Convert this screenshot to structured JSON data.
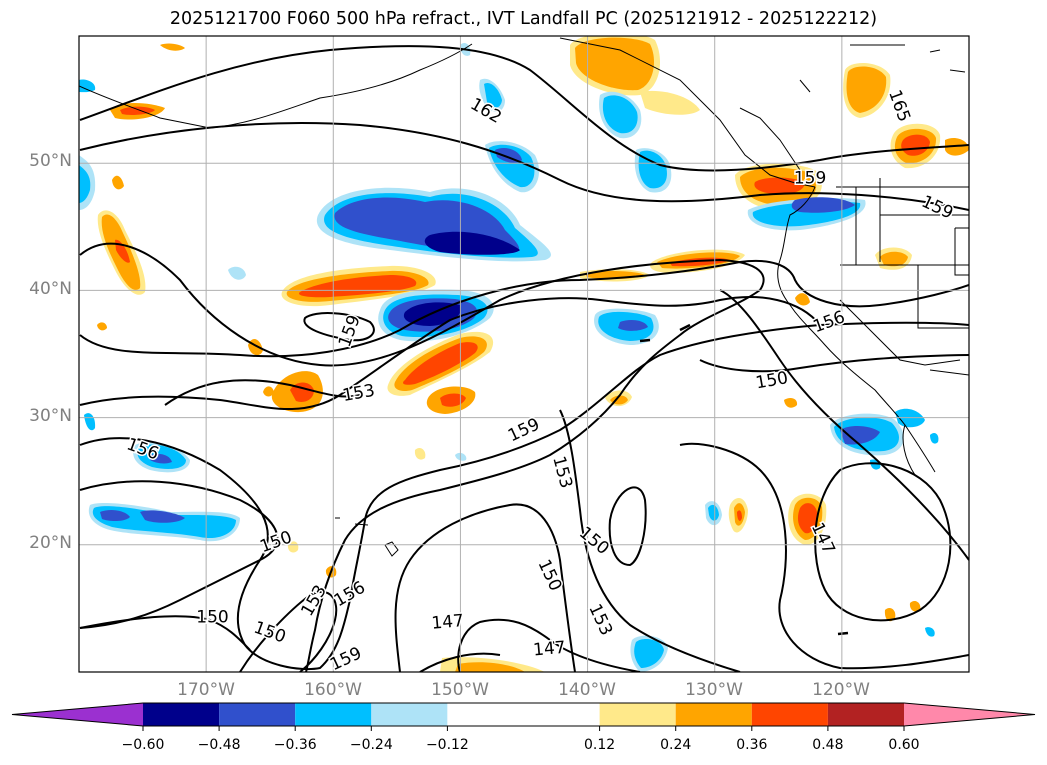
{
  "title": "2025121700 F060 500 hPa refract., IVT Landfall PC (2025121912 - 2025122212)",
  "map": {
    "lon_range": [
      -180,
      -110
    ],
    "lat_range": [
      10,
      60
    ],
    "grid_lons": [
      -170,
      -160,
      -150,
      -140,
      -130,
      -120
    ],
    "grid_lats": [
      20,
      30,
      40,
      50
    ],
    "lat_labels": [
      "20°N",
      "30°N",
      "40°N",
      "50°N"
    ],
    "lon_labels": [
      "170°W",
      "160°W",
      "150°W",
      "140°W",
      "130°W",
      "120°W"
    ],
    "contour_labels": [
      {
        "text": "162",
        "lon": -148,
        "lat": 54.1,
        "rot": 30
      },
      {
        "text": "165",
        "lon": -115.5,
        "lat": 54.5,
        "rot": 70
      },
      {
        "text": "159",
        "lon": -122.5,
        "lat": 48.8,
        "rot": 0
      },
      {
        "text": "159",
        "lon": -112.5,
        "lat": 46.5,
        "rot": 25
      },
      {
        "text": "156",
        "lon": -121,
        "lat": 37.5,
        "rot": -20
      },
      {
        "text": "159",
        "lon": -158.7,
        "lat": 36.8,
        "rot": -70
      },
      {
        "text": "153",
        "lon": -158,
        "lat": 31.9,
        "rot": -10
      },
      {
        "text": "150",
        "lon": -125.5,
        "lat": 32.9,
        "rot": -10
      },
      {
        "text": "159",
        "lon": -145,
        "lat": 29,
        "rot": -25
      },
      {
        "text": "156",
        "lon": -175,
        "lat": 27.5,
        "rot": 20
      },
      {
        "text": "153",
        "lon": -142,
        "lat": 25.7,
        "rot": 75
      },
      {
        "text": "150",
        "lon": -164.5,
        "lat": 20.2,
        "rot": -20
      },
      {
        "text": "150",
        "lon": -139.5,
        "lat": 20.3,
        "rot": 40
      },
      {
        "text": "150",
        "lon": -143,
        "lat": 17.6,
        "rot": 65
      },
      {
        "text": "147",
        "lon": -121.5,
        "lat": 20.5,
        "rot": 65
      },
      {
        "text": "153",
        "lon": -161.5,
        "lat": 15.6,
        "rot": -60
      },
      {
        "text": "156",
        "lon": -158.7,
        "lat": 16.1,
        "rot": -30
      },
      {
        "text": "150",
        "lon": -169.5,
        "lat": 14.3,
        "rot": 0
      },
      {
        "text": "150",
        "lon": -165,
        "lat": 13.1,
        "rot": 20
      },
      {
        "text": "147",
        "lon": -151,
        "lat": 13.9,
        "rot": -5
      },
      {
        "text": "153",
        "lon": -139,
        "lat": 14.1,
        "rot": 65
      },
      {
        "text": "147",
        "lon": -143,
        "lat": 11.8,
        "rot": -5
      },
      {
        "text": "159",
        "lon": -159,
        "lat": 11,
        "rot": -25
      }
    ]
  },
  "colorbar": {
    "bounds": [
      -0.72,
      -0.6,
      -0.48,
      -0.36,
      -0.24,
      -0.12,
      0.12,
      0.24,
      0.36,
      0.48,
      0.6,
      0.72
    ],
    "colors": [
      "#9b30d0",
      "#00008b",
      "#3050cc",
      "#00bfff",
      "#aee3f7",
      "#ffffff",
      "#ffe98a",
      "#ffa500",
      "#ff4500",
      "#b22222",
      "#ff88aa"
    ],
    "tick_labels": [
      "−0.60",
      "−0.48",
      "−0.36",
      "−0.24",
      "−0.12",
      "0.12",
      "0.24",
      "0.36",
      "0.48",
      "0.60"
    ]
  },
  "colors": {
    "contour": "#000000",
    "grid": "#b0b0b0"
  }
}
